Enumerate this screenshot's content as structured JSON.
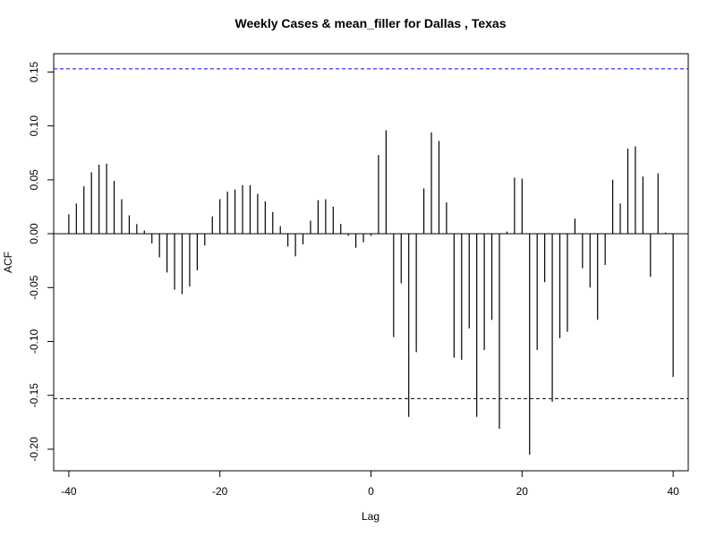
{
  "chart_data": {
    "type": "bar",
    "title": "Weekly Cases & mean_filler for Dallas , Texas",
    "xlabel": "Lag",
    "ylabel": "ACF",
    "xlim": [
      -42,
      42
    ],
    "ylim": [
      -0.22,
      0.167
    ],
    "x_ticks": [
      -40,
      -20,
      0,
      20,
      40
    ],
    "x_tick_labels": [
      "-40",
      "-20",
      "0",
      "20",
      "40"
    ],
    "y_ticks": [
      -0.2,
      -0.15,
      -0.1,
      -0.05,
      0.0,
      0.05,
      0.1,
      0.15
    ],
    "y_tick_labels": [
      "-0.20",
      "-0.15",
      "-0.10",
      "-0.05",
      "0.00",
      "0.05",
      "0.10",
      "0.15"
    ],
    "confidence_bounds": {
      "upper": 0.153,
      "lower": -0.153,
      "upper_color": "#0000ff",
      "lower_color": "#000000"
    },
    "lags": [
      -40,
      -39,
      -38,
      -37,
      -36,
      -35,
      -34,
      -33,
      -32,
      -31,
      -30,
      -29,
      -28,
      -27,
      -26,
      -25,
      -24,
      -23,
      -22,
      -21,
      -20,
      -19,
      -18,
      -17,
      -16,
      -15,
      -14,
      -13,
      -12,
      -11,
      -10,
      -9,
      -8,
      -7,
      -6,
      -5,
      -4,
      -3,
      -2,
      -1,
      0,
      1,
      2,
      3,
      4,
      5,
      6,
      7,
      8,
      9,
      10,
      11,
      12,
      13,
      14,
      15,
      16,
      17,
      18,
      19,
      20,
      21,
      22,
      23,
      24,
      25,
      26,
      27,
      28,
      29,
      30,
      31,
      32,
      33,
      34,
      35,
      36,
      37,
      38,
      39,
      40
    ],
    "values": [
      0.018,
      0.028,
      0.044,
      0.057,
      0.064,
      0.065,
      0.049,
      0.032,
      0.017,
      0.009,
      0.003,
      -0.009,
      -0.022,
      -0.036,
      -0.052,
      -0.056,
      -0.049,
      -0.034,
      -0.011,
      0.016,
      0.032,
      0.039,
      0.041,
      0.045,
      0.045,
      0.037,
      0.03,
      0.02,
      0.007,
      -0.012,
      -0.021,
      -0.01,
      0.012,
      0.031,
      0.032,
      0.025,
      0.009,
      -0.002,
      -0.013,
      -0.008,
      -0.002,
      0.073,
      0.096,
      -0.096,
      -0.046,
      -0.17,
      -0.11,
      0.042,
      0.094,
      0.086,
      0.029,
      -0.115,
      -0.117,
      -0.088,
      -0.17,
      -0.108,
      -0.08,
      -0.181,
      0.002,
      0.052,
      0.051,
      -0.205,
      -0.108,
      -0.045,
      -0.156,
      -0.097,
      -0.091,
      0.014,
      -0.032,
      -0.05,
      -0.08,
      -0.029,
      0.05,
      0.028,
      0.079,
      0.081,
      0.053,
      -0.04,
      0.056,
      0.001,
      -0.133
    ]
  }
}
